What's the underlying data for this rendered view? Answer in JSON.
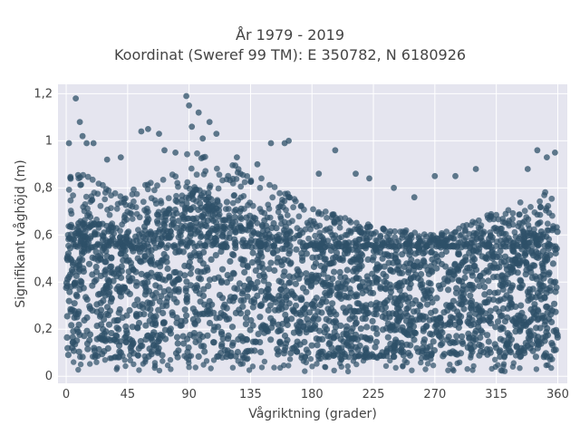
{
  "chart_data": {
    "type": "scatter",
    "title": "År 1979 - 2019",
    "subtitle": "Koordinat (Sweref 99 TM): E 350782, N 6180926",
    "xlabel": "Vågriktning (grader)",
    "ylabel": "Signifikant våghöjd (m)",
    "xlim": [
      -6,
      367
    ],
    "ylim": [
      -0.03,
      1.24
    ],
    "x_ticks": [
      0,
      45,
      90,
      135,
      180,
      225,
      270,
      315,
      360
    ],
    "x_tick_labels": [
      "0",
      "45",
      "90",
      "135",
      "180",
      "225",
      "270",
      "315",
      "360"
    ],
    "y_ticks": [
      0,
      0.2,
      0.4,
      0.6,
      0.8,
      1,
      1.2
    ],
    "y_tick_labels": [
      "0",
      "0,2",
      "0,4",
      "0,6",
      "0,8",
      "1",
      "1,2"
    ],
    "grid": true,
    "background": "#e5e5ef",
    "marker_color": "#2e5068",
    "dense_band": [
      0.08,
      0.55
    ],
    "envelope": [
      {
        "x": 0,
        "y": 0.82
      },
      {
        "x": 20,
        "y": 0.78
      },
      {
        "x": 45,
        "y": 0.72
      },
      {
        "x": 70,
        "y": 0.8
      },
      {
        "x": 90,
        "y": 0.9
      },
      {
        "x": 110,
        "y": 0.88
      },
      {
        "x": 135,
        "y": 0.8
      },
      {
        "x": 160,
        "y": 0.74
      },
      {
        "x": 180,
        "y": 0.66
      },
      {
        "x": 200,
        "y": 0.62
      },
      {
        "x": 225,
        "y": 0.58
      },
      {
        "x": 250,
        "y": 0.56
      },
      {
        "x": 270,
        "y": 0.54
      },
      {
        "x": 290,
        "y": 0.58
      },
      {
        "x": 315,
        "y": 0.64
      },
      {
        "x": 340,
        "y": 0.7
      },
      {
        "x": 360,
        "y": 0.75
      }
    ],
    "outliers": [
      {
        "x": 7,
        "y": 1.18
      },
      {
        "x": 10,
        "y": 1.08
      },
      {
        "x": 12,
        "y": 1.02
      },
      {
        "x": 15,
        "y": 0.99
      },
      {
        "x": 20,
        "y": 0.99
      },
      {
        "x": 2,
        "y": 0.99
      },
      {
        "x": 55,
        "y": 1.04
      },
      {
        "x": 60,
        "y": 1.05
      },
      {
        "x": 68,
        "y": 1.03
      },
      {
        "x": 88,
        "y": 1.19
      },
      {
        "x": 90,
        "y": 1.15
      },
      {
        "x": 97,
        "y": 1.12
      },
      {
        "x": 92,
        "y": 1.06
      },
      {
        "x": 105,
        "y": 1.08
      },
      {
        "x": 110,
        "y": 1.03
      },
      {
        "x": 100,
        "y": 1.01
      },
      {
        "x": 150,
        "y": 0.99
      },
      {
        "x": 160,
        "y": 0.99
      },
      {
        "x": 163,
        "y": 1.0
      },
      {
        "x": 197,
        "y": 0.96
      },
      {
        "x": 270,
        "y": 0.85
      },
      {
        "x": 285,
        "y": 0.85
      },
      {
        "x": 300,
        "y": 0.88
      },
      {
        "x": 345,
        "y": 0.96
      },
      {
        "x": 352,
        "y": 0.93
      },
      {
        "x": 358,
        "y": 0.95
      },
      {
        "x": 338,
        "y": 0.88
      },
      {
        "x": 255,
        "y": 0.76
      },
      {
        "x": 240,
        "y": 0.8
      },
      {
        "x": 222,
        "y": 0.84
      },
      {
        "x": 212,
        "y": 0.86
      },
      {
        "x": 185,
        "y": 0.86
      },
      {
        "x": 125,
        "y": 0.93
      },
      {
        "x": 140,
        "y": 0.9
      },
      {
        "x": 40,
        "y": 0.93
      },
      {
        "x": 30,
        "y": 0.92
      },
      {
        "x": 72,
        "y": 0.96
      },
      {
        "x": 80,
        "y": 0.95
      }
    ]
  }
}
